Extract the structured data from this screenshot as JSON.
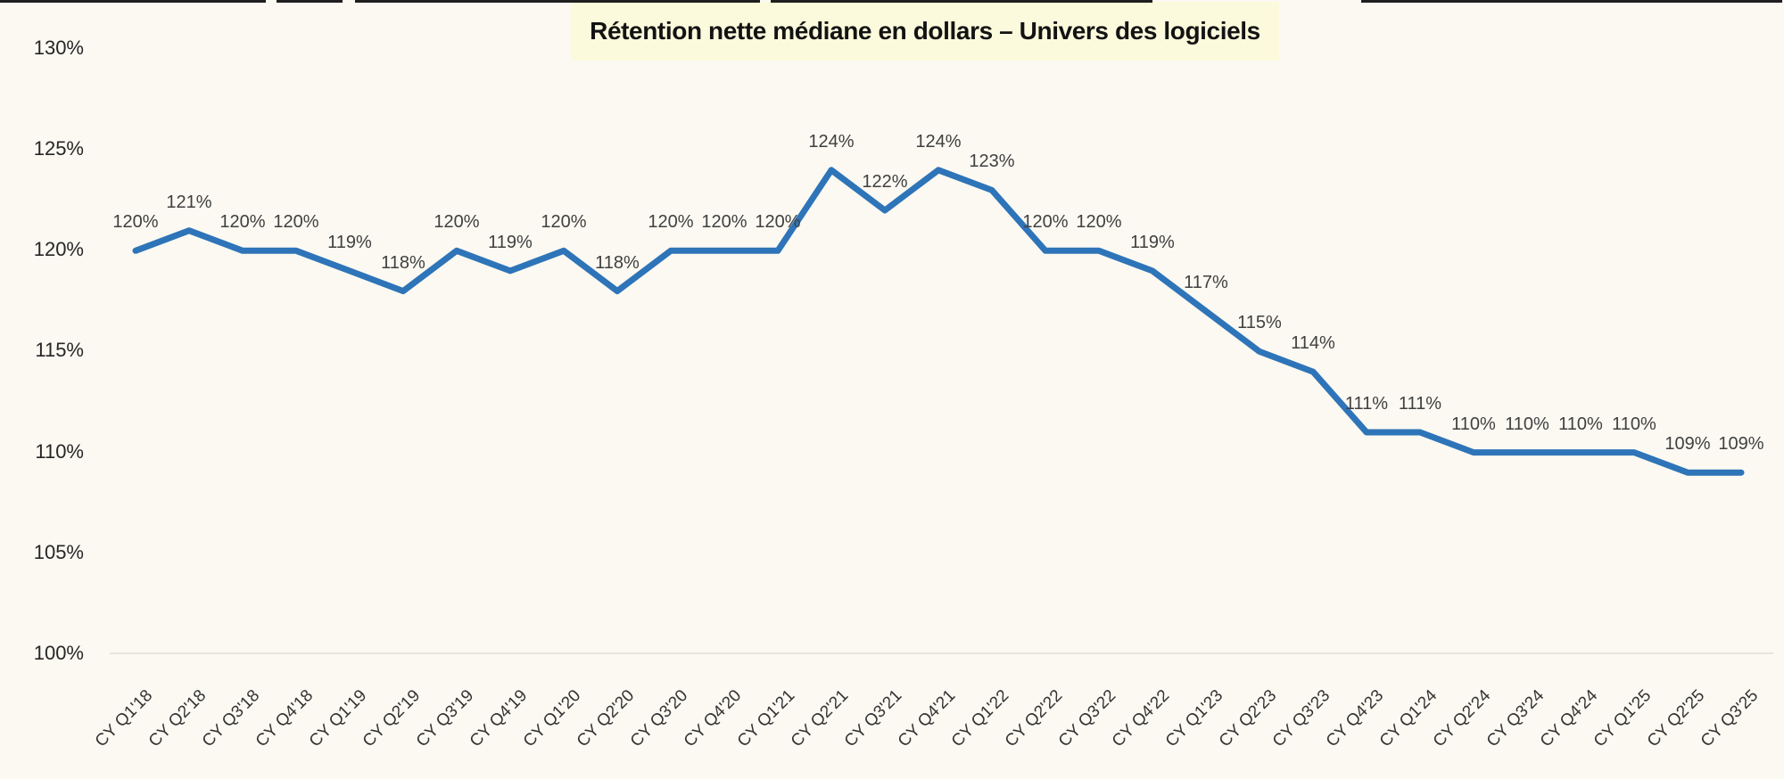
{
  "page": {
    "background": "#fbf9f2",
    "top_crop_artifact_color": "#1f1f1f"
  },
  "title": {
    "text": "Rétention nette médiane en dollars – Univers des logiciels",
    "highlight_color": "#fcfadc",
    "text_color": "#131313"
  },
  "chart_data": {
    "type": "line",
    "title": "Rétention nette médiane en dollars – Univers des logiciels",
    "categories": [
      "CY Q1'18",
      "CY Q2'18",
      "CY Q3'18",
      "CY Q4'18",
      "CY Q1'19",
      "CY Q2'19",
      "CY Q3'19",
      "CY Q4'19",
      "CY Q1'20",
      "CY Q2'20",
      "CY Q3'20",
      "CY Q4'20",
      "CY Q1'21",
      "CY Q2'21",
      "CY Q3'21",
      "CY Q4'21",
      "CY Q1'22",
      "CY Q2'22",
      "CY Q3'22",
      "CY Q4'22",
      "CY Q1'23",
      "CY Q2'23",
      "CY Q3'23",
      "CY Q4'23",
      "CY Q1'24",
      "CY Q2'24",
      "CY Q3'24",
      "CY Q4'24",
      "CY Q1'25",
      "CY Q2'25",
      "CY Q3'25"
    ],
    "values": [
      120,
      121,
      120,
      120,
      119,
      118,
      120,
      119,
      120,
      118,
      120,
      120,
      120,
      124,
      122,
      124,
      123,
      120,
      120,
      119,
      117,
      115,
      114,
      111,
      111,
      110,
      110,
      110,
      110,
      109,
      109
    ],
    "unit": "%",
    "xlabel": "",
    "ylabel": "",
    "ylim": [
      100,
      130
    ],
    "y_ticks": [
      130,
      125,
      120,
      115,
      110,
      105,
      100
    ],
    "y_tick_suffix": "%",
    "grid": "horizontal baseline at 100% only",
    "legend": "none",
    "data_labels_shown": true,
    "line_color": "#2e74b8",
    "gridline_color": "#e8e5de",
    "data_label_color": "#404040",
    "y_axis_label_color": "#262626",
    "x_axis_label_color": "#333333"
  }
}
